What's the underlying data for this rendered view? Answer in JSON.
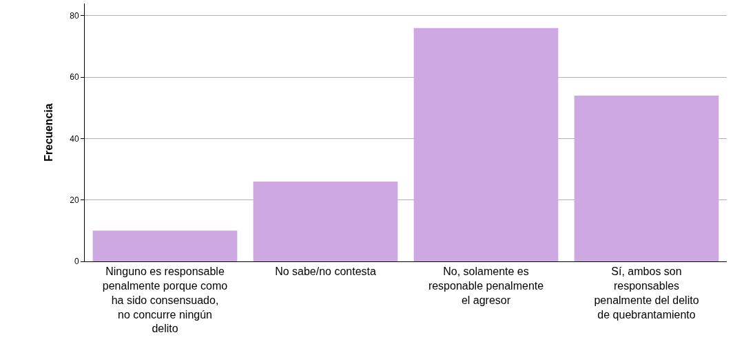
{
  "chart_data": {
    "type": "bar",
    "ylabel": "Frecuencia",
    "categories": [
      "Ninguno es responsable penalmente porque como ha sido consensuado, no concurre ningún delito",
      "No sabe/no contesta",
      "No, solamente es responable penalmente el agresor",
      "Sí, ambos son responsables penalmente del delito de quebrantamiento"
    ],
    "values": [
      10,
      26,
      76,
      54
    ],
    "color": "#cea8e1",
    "ylim": [
      0,
      84
    ],
    "yticks": [
      0,
      20,
      40,
      60,
      80
    ],
    "grid": "y",
    "legend": false
  }
}
